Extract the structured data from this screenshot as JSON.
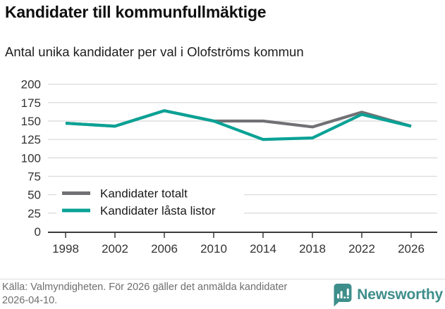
{
  "title": "Kandidater till kommunfullmäktige",
  "subtitle": "Antal unika kandidater per val i Olofströms kommun",
  "footer": {
    "source_text": "Källa: Valmyndigheten. För 2026 gäller det anmälda kandidater 2026-04-10.",
    "brand": "Newsworthy"
  },
  "colors": {
    "total_line": "#717175",
    "locked_line": "#09a295",
    "grid": "#dcdcdc",
    "axis": "#3a3a3a",
    "tick_text": "#333333",
    "legend_text": "#1a1a1a",
    "footer_text": "#6e6e6e",
    "brand_teal": "#3e8e8b",
    "background": "#ffffff"
  },
  "chart_data": {
    "type": "line",
    "title": "Kandidater till kommunfullmäktige",
    "subtitle": "Antal unika kandidater per val i Olofströms kommun",
    "categories": [
      "1998",
      "2002",
      "2006",
      "2010",
      "2014",
      "2018",
      "2022",
      "2026"
    ],
    "series": [
      {
        "name": "Kandidater totalt",
        "color": "#717175",
        "values": [
          147,
          143,
          164,
          150,
          150,
          142,
          162,
          143
        ]
      },
      {
        "name": "Kandidater låsta listor",
        "color": "#09a295",
        "values": [
          147,
          143,
          164,
          150,
          125,
          127,
          159,
          143
        ]
      }
    ],
    "xlabel": "",
    "ylabel": "",
    "ylim": [
      0,
      200
    ],
    "ytick_step": 25,
    "grid": true,
    "legend_position": "inside-bottom-left",
    "note": "Gray series (totalt) overlaps teal series 1998–2010 and 2026"
  }
}
